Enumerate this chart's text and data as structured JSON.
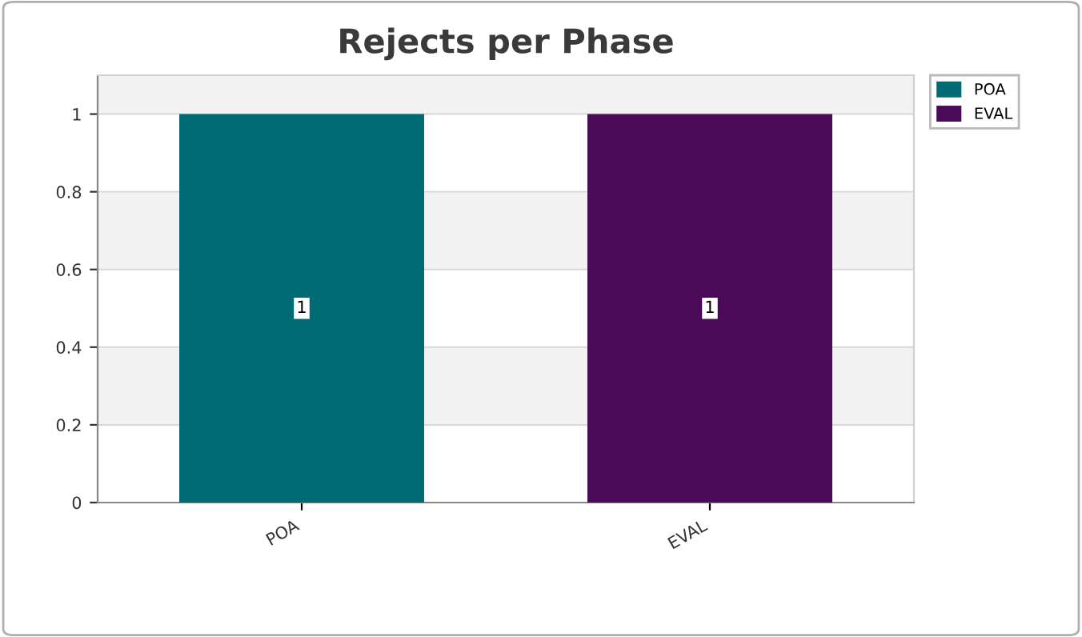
{
  "chart_data": {
    "type": "bar",
    "title": "Rejects per Phase",
    "categories": [
      "POA",
      "EVAL"
    ],
    "series": [
      {
        "name": "POA",
        "color": "#006b72",
        "values": [
          1,
          null
        ]
      },
      {
        "name": "EVAL",
        "color": "#4a0a57",
        "values": [
          null,
          1
        ]
      }
    ],
    "ylim": [
      0,
      1.1
    ],
    "yticks": [
      0,
      0.2,
      0.4,
      0.6,
      0.8,
      1
    ],
    "grid": "y",
    "legend": "top right",
    "data_labels": true
  }
}
